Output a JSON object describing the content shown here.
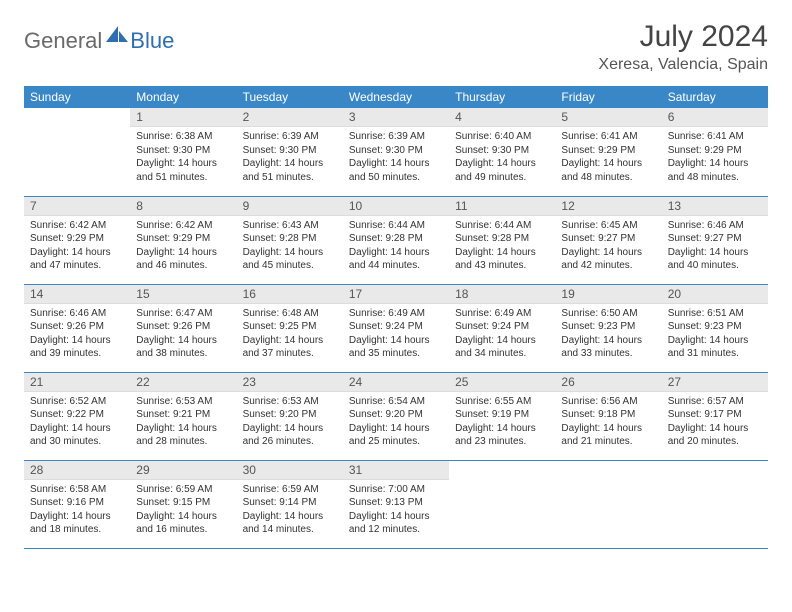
{
  "logo": {
    "text1": "General",
    "text2": "Blue"
  },
  "title": "July 2024",
  "location": "Xeresa, Valencia, Spain",
  "colors": {
    "header_bg": "#3a87c8",
    "header_text": "#ffffff",
    "daynum_bg": "#e9e9e9",
    "row_divider": "#3a87c8",
    "logo_gray": "#6a6a6a",
    "logo_blue": "#2f6fb0",
    "sail_color": "#2f6fb0"
  },
  "weekdays": [
    "Sunday",
    "Monday",
    "Tuesday",
    "Wednesday",
    "Thursday",
    "Friday",
    "Saturday"
  ],
  "weeks": [
    [
      null,
      {
        "n": "1",
        "sr": "6:38 AM",
        "ss": "9:30 PM",
        "dl": "14 hours and 51 minutes."
      },
      {
        "n": "2",
        "sr": "6:39 AM",
        "ss": "9:30 PM",
        "dl": "14 hours and 51 minutes."
      },
      {
        "n": "3",
        "sr": "6:39 AM",
        "ss": "9:30 PM",
        "dl": "14 hours and 50 minutes."
      },
      {
        "n": "4",
        "sr": "6:40 AM",
        "ss": "9:30 PM",
        "dl": "14 hours and 49 minutes."
      },
      {
        "n": "5",
        "sr": "6:41 AM",
        "ss": "9:29 PM",
        "dl": "14 hours and 48 minutes."
      },
      {
        "n": "6",
        "sr": "6:41 AM",
        "ss": "9:29 PM",
        "dl": "14 hours and 48 minutes."
      }
    ],
    [
      {
        "n": "7",
        "sr": "6:42 AM",
        "ss": "9:29 PM",
        "dl": "14 hours and 47 minutes."
      },
      {
        "n": "8",
        "sr": "6:42 AM",
        "ss": "9:29 PM",
        "dl": "14 hours and 46 minutes."
      },
      {
        "n": "9",
        "sr": "6:43 AM",
        "ss": "9:28 PM",
        "dl": "14 hours and 45 minutes."
      },
      {
        "n": "10",
        "sr": "6:44 AM",
        "ss": "9:28 PM",
        "dl": "14 hours and 44 minutes."
      },
      {
        "n": "11",
        "sr": "6:44 AM",
        "ss": "9:28 PM",
        "dl": "14 hours and 43 minutes."
      },
      {
        "n": "12",
        "sr": "6:45 AM",
        "ss": "9:27 PM",
        "dl": "14 hours and 42 minutes."
      },
      {
        "n": "13",
        "sr": "6:46 AM",
        "ss": "9:27 PM",
        "dl": "14 hours and 40 minutes."
      }
    ],
    [
      {
        "n": "14",
        "sr": "6:46 AM",
        "ss": "9:26 PM",
        "dl": "14 hours and 39 minutes."
      },
      {
        "n": "15",
        "sr": "6:47 AM",
        "ss": "9:26 PM",
        "dl": "14 hours and 38 minutes."
      },
      {
        "n": "16",
        "sr": "6:48 AM",
        "ss": "9:25 PM",
        "dl": "14 hours and 37 minutes."
      },
      {
        "n": "17",
        "sr": "6:49 AM",
        "ss": "9:24 PM",
        "dl": "14 hours and 35 minutes."
      },
      {
        "n": "18",
        "sr": "6:49 AM",
        "ss": "9:24 PM",
        "dl": "14 hours and 34 minutes."
      },
      {
        "n": "19",
        "sr": "6:50 AM",
        "ss": "9:23 PM",
        "dl": "14 hours and 33 minutes."
      },
      {
        "n": "20",
        "sr": "6:51 AM",
        "ss": "9:23 PM",
        "dl": "14 hours and 31 minutes."
      }
    ],
    [
      {
        "n": "21",
        "sr": "6:52 AM",
        "ss": "9:22 PM",
        "dl": "14 hours and 30 minutes."
      },
      {
        "n": "22",
        "sr": "6:53 AM",
        "ss": "9:21 PM",
        "dl": "14 hours and 28 minutes."
      },
      {
        "n": "23",
        "sr": "6:53 AM",
        "ss": "9:20 PM",
        "dl": "14 hours and 26 minutes."
      },
      {
        "n": "24",
        "sr": "6:54 AM",
        "ss": "9:20 PM",
        "dl": "14 hours and 25 minutes."
      },
      {
        "n": "25",
        "sr": "6:55 AM",
        "ss": "9:19 PM",
        "dl": "14 hours and 23 minutes."
      },
      {
        "n": "26",
        "sr": "6:56 AM",
        "ss": "9:18 PM",
        "dl": "14 hours and 21 minutes."
      },
      {
        "n": "27",
        "sr": "6:57 AM",
        "ss": "9:17 PM",
        "dl": "14 hours and 20 minutes."
      }
    ],
    [
      {
        "n": "28",
        "sr": "6:58 AM",
        "ss": "9:16 PM",
        "dl": "14 hours and 18 minutes."
      },
      {
        "n": "29",
        "sr": "6:59 AM",
        "ss": "9:15 PM",
        "dl": "14 hours and 16 minutes."
      },
      {
        "n": "30",
        "sr": "6:59 AM",
        "ss": "9:14 PM",
        "dl": "14 hours and 14 minutes."
      },
      {
        "n": "31",
        "sr": "7:00 AM",
        "ss": "9:13 PM",
        "dl": "14 hours and 12 minutes."
      },
      null,
      null,
      null
    ]
  ],
  "labels": {
    "sunrise": "Sunrise:",
    "sunset": "Sunset:",
    "daylight": "Daylight:"
  }
}
